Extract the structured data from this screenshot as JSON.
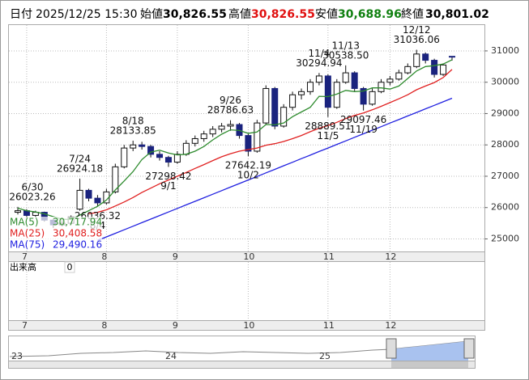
{
  "header": {
    "date_label": "日付",
    "datetime": "2025/12/25 15:30",
    "items": [
      {
        "name": "始値",
        "value": 30826.55,
        "label": "30,826.55",
        "color": "#000"
      },
      {
        "name": "高値",
        "value": 30826.55,
        "label": "30,826.55",
        "color": "#e01010"
      },
      {
        "name": "安値",
        "value": 30688.96,
        "label": "30,688.96",
        "color": "#108010"
      },
      {
        "name": "終値",
        "value": 30801.02,
        "label": "30,801.02",
        "color": "#000"
      }
    ]
  },
  "chart_data": {
    "type": "candlestick",
    "categories": [
      null,
      "7",
      null,
      null,
      null,
      null,
      null,
      null,
      null,
      null,
      "8",
      null,
      null,
      null,
      null,
      null,
      null,
      null,
      "9",
      null,
      null,
      null,
      null,
      null,
      null,
      null,
      "10",
      null,
      null,
      null,
      null,
      null,
      null,
      null,
      null,
      "11",
      null,
      null,
      null,
      null,
      null,
      null,
      "12",
      null,
      null,
      null,
      null,
      null,
      null,
      null
    ],
    "open": [
      25850,
      25900,
      25750,
      25850,
      25600,
      25450,
      25500,
      25950,
      26550,
      26300,
      26150,
      26500,
      27300,
      27900,
      28000,
      27950,
      27700,
      27600,
      27450,
      27700,
      28050,
      28200,
      28350,
      28500,
      28600,
      28650,
      28300,
      27800,
      28700,
      29800,
      28600,
      29200,
      29600,
      29700,
      30000,
      30200,
      29200,
      30000,
      30300,
      29800,
      29300,
      29700,
      30000,
      30100,
      30300,
      30500,
      30900,
      30700,
      30250,
      30826.55
    ],
    "high": [
      26023.26,
      25950,
      25900,
      25870,
      25650,
      25600,
      25750,
      26924.18,
      26600,
      26400,
      26600,
      27400,
      28000,
      28133.85,
      28100,
      28000,
      27800,
      27650,
      27800,
      28150,
      28300,
      28450,
      28600,
      28700,
      28786.63,
      28700,
      28350,
      28800,
      29900,
      29850,
      29300,
      29700,
      29800,
      30100,
      30294.94,
      30250,
      30100,
      30538.5,
      30350,
      29850,
      29800,
      30100,
      30200,
      30400,
      30600,
      31036.06,
      30950,
      30750,
      30600,
      30826.55
    ],
    "low": [
      25780,
      25650,
      25700,
      25550,
      25350,
      25400,
      25450,
      25900,
      26200,
      26036.32,
      26100,
      26450,
      27250,
      27800,
      27850,
      27600,
      27500,
      27298.42,
      27400,
      27650,
      27950,
      28100,
      28250,
      28400,
      28450,
      28200,
      27642.19,
      27750,
      28650,
      28500,
      28550,
      29100,
      29450,
      29600,
      29900,
      28889.51,
      29150,
      29950,
      29700,
      29097.46,
      29250,
      29650,
      29900,
      30050,
      30250,
      30450,
      30600,
      30150,
      30200,
      30688.96
    ],
    "close": [
      25900,
      25750,
      25850,
      25600,
      25450,
      25500,
      25700,
      26550,
      26300,
      26150,
      26500,
      27300,
      27900,
      28000,
      27950,
      27700,
      27600,
      27450,
      27700,
      28050,
      28200,
      28350,
      28500,
      28600,
      28650,
      28300,
      27800,
      28700,
      29800,
      28600,
      29200,
      29600,
      29700,
      30000,
      30200,
      29200,
      30000,
      30300,
      29800,
      29300,
      29700,
      30000,
      30100,
      30300,
      30500,
      30900,
      30700,
      30250,
      30550,
      30801.02
    ],
    "up_color": "#ffffff",
    "down_color": "#1a237e",
    "series": [
      {
        "name": "MA(5)",
        "color": "#2e8b2e",
        "last_label": "30,717.94",
        "values": [
          25980,
          25900,
          25860,
          25800,
          25710,
          25630,
          25620,
          25760,
          25900,
          26040,
          26240,
          26560,
          26850,
          27150,
          27530,
          27770,
          27830,
          27740,
          27680,
          27700,
          27800,
          27950,
          28160,
          28340,
          28480,
          28460,
          28370,
          28410,
          28650,
          28640,
          28700,
          28900,
          29050,
          29200,
          29550,
          29540,
          29620,
          29740,
          29700,
          29720,
          29820,
          29820,
          29780,
          29880,
          30120,
          30360,
          30500,
          30530,
          30580,
          30717.94
        ]
      },
      {
        "name": "MA(25)",
        "color": "#e02020",
        "last_label": "30,408.58",
        "values": [
          null,
          null,
          null,
          null,
          null,
          null,
          null,
          null,
          25800,
          25850,
          25930,
          26050,
          26180,
          26320,
          26480,
          26620,
          26760,
          26880,
          27000,
          27120,
          27250,
          27370,
          27500,
          27620,
          27720,
          27800,
          27850,
          27900,
          27990,
          28040,
          28110,
          28200,
          28300,
          28420,
          28530,
          28620,
          28720,
          28840,
          28940,
          29020,
          29120,
          29230,
          29350,
          29470,
          29600,
          29760,
          29880,
          29990,
          30150,
          30408.58
        ]
      },
      {
        "name": "MA(75)",
        "color": "#2020e0",
        "last_label": "29,490.16",
        "values": [
          null,
          null,
          null,
          null,
          null,
          null,
          null,
          null,
          null,
          24950,
          25064,
          25177,
          25291,
          25404,
          25518,
          25631,
          25745,
          25858,
          25972,
          26085,
          26199,
          26312,
          26426,
          26539,
          26653,
          26766,
          26880,
          26993,
          27107,
          27220,
          27334,
          27447,
          27561,
          27674,
          27788,
          27901,
          28015,
          28128,
          28242,
          28355,
          28469,
          28582,
          28696,
          28809,
          28923,
          29036,
          29150,
          29263,
          29377,
          29490.16
        ]
      }
    ],
    "annotations": [
      {
        "date": "6/30",
        "value": 26023.26
      },
      {
        "date": "7/24",
        "value": 26924.18
      },
      {
        "date": "8/4",
        "value": 26036.32
      },
      {
        "date": "8/18",
        "value": 28133.85
      },
      {
        "date": "9/1",
        "value": 27298.42
      },
      {
        "date": "9/26",
        "value": 28786.63
      },
      {
        "date": "10/2",
        "value": 27642.19
      },
      {
        "date": "11/4",
        "value": 30294.94
      },
      {
        "date": "11/5",
        "value": 28889.51
      },
      {
        "date": "11/13",
        "value": 30538.5,
        "label": "30538.50"
      },
      {
        "date": "11/19",
        "value": 29097.46
      },
      {
        "date": "12/12",
        "value": 31036.06
      }
    ],
    "ylim": [
      24600,
      31850
    ],
    "yticks": [
      25000,
      26000,
      27000,
      28000,
      29000,
      30000,
      31000
    ],
    "grid": true
  },
  "volume": {
    "title": "出来高",
    "value": 0
  },
  "navigator": {
    "labels": [
      "23",
      "24",
      "25"
    ]
  }
}
